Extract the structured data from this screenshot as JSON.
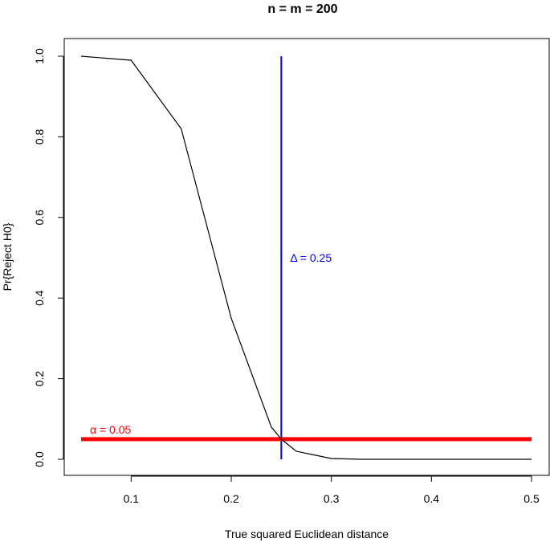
{
  "chart_data": {
    "type": "line",
    "title": "n = m = 200",
    "xlabel": "True squared Euclidean distance",
    "ylabel": "Pr{Reject H0}",
    "xlim": [
      0.05,
      0.5
    ],
    "ylim": [
      0,
      1
    ],
    "x_ticks": [
      0.1,
      0.2,
      0.3,
      0.4,
      0.5
    ],
    "x_tick_labels": [
      "0.1",
      "0.2",
      "0.3",
      "0.4",
      "0.5"
    ],
    "y_ticks": [
      0,
      0.2,
      0.4,
      0.6,
      0.8,
      1.0
    ],
    "y_tick_labels": [
      "0.0",
      "0.2",
      "0.4",
      "0.6",
      "0.8",
      "1.0"
    ],
    "grid": false,
    "series": [
      {
        "color": "#000000",
        "x": [
          0.05,
          0.1,
          0.15,
          0.2,
          0.24,
          0.25,
          0.265,
          0.3,
          0.33,
          0.5
        ],
        "y": [
          1.0,
          0.99,
          0.82,
          0.35,
          0.08,
          0.05,
          0.02,
          0.002,
          0.0,
          0.0
        ]
      }
    ],
    "reference_lines": [
      {
        "orientation": "vertical",
        "value": 0.25,
        "from": 0,
        "to": 1,
        "color": "#0000ff",
        "label": "Δ = 0.25"
      },
      {
        "orientation": "horizontal",
        "value": 0.05,
        "from": 0.05,
        "to": 0.5,
        "color": "#ff0000",
        "label": "α = 0.05"
      }
    ]
  }
}
